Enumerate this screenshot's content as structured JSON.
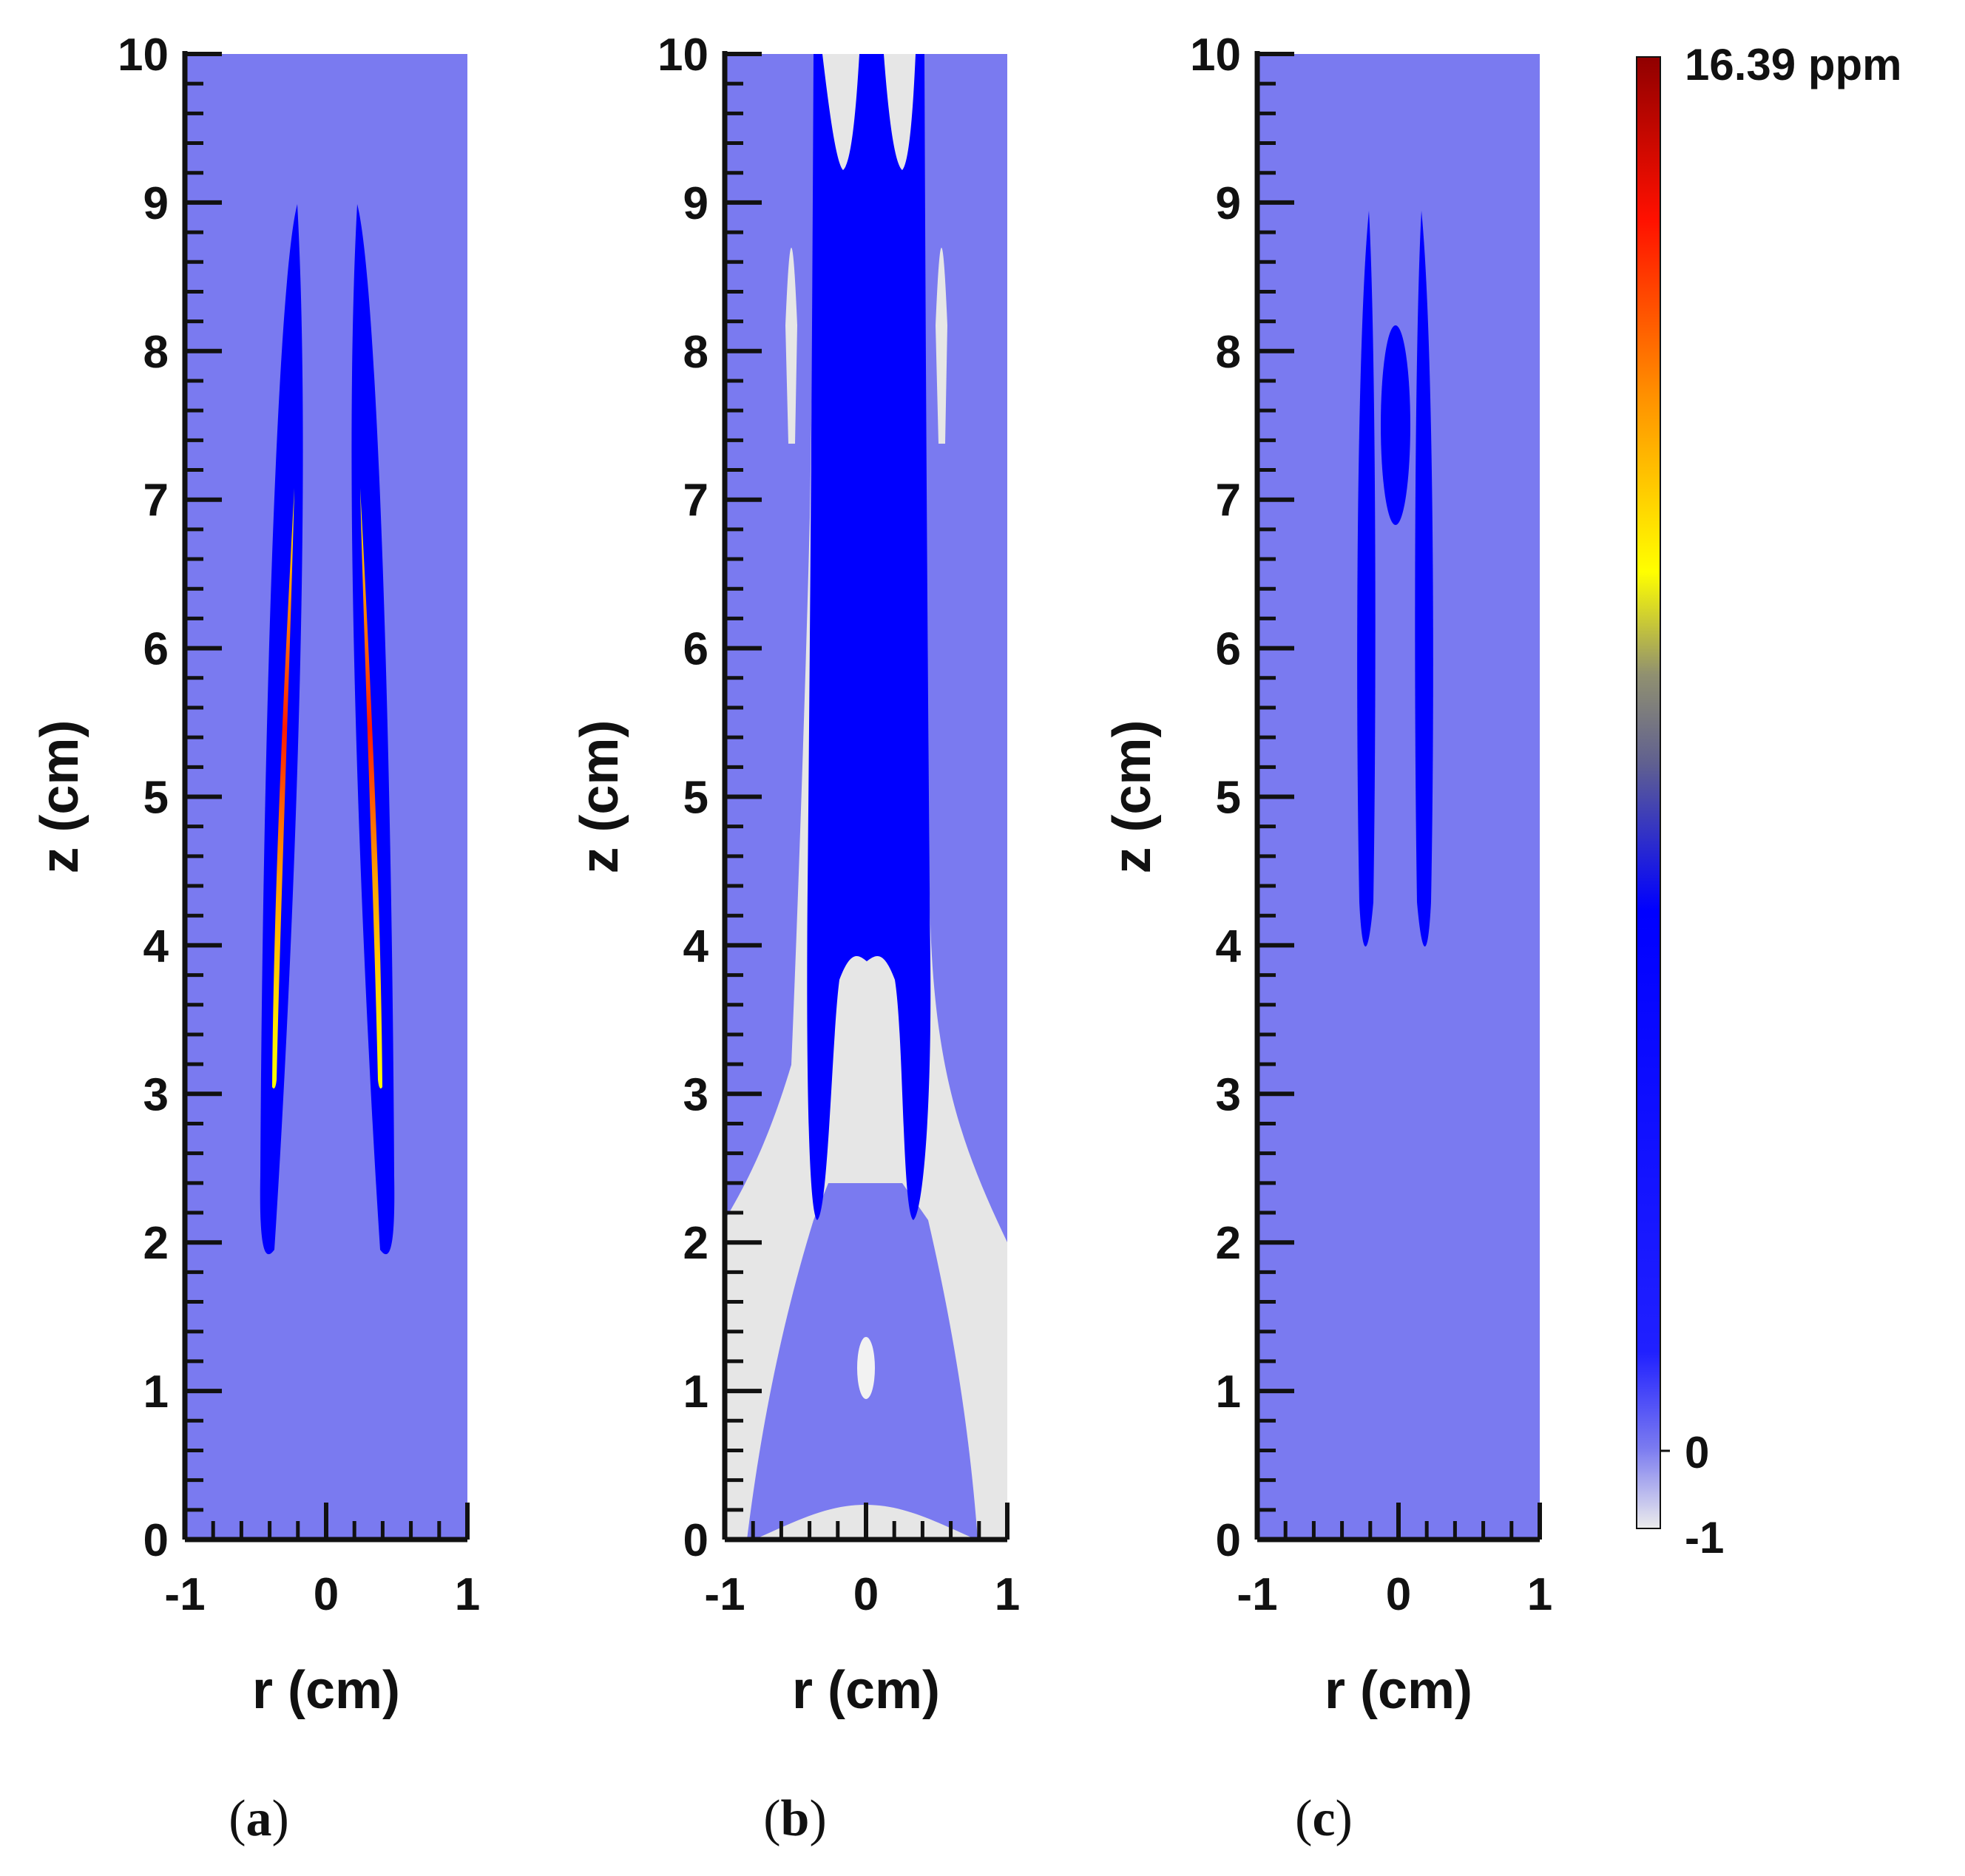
{
  "chart_data": {
    "type": "heatmap",
    "colorbar": {
      "max_label": "16.39 ppm",
      "zero_label": "0",
      "min_label": "-1",
      "range": [
        -1,
        16.39
      ],
      "colors": [
        "#e8e8e8",
        "#7a7af0",
        "#0000ff",
        "#808080",
        "#ffff00",
        "#ff8000",
        "#ff0000",
        "#900000"
      ]
    },
    "panels": [
      {
        "caption": "a",
        "xlabel": "r (cm)",
        "ylabel": "z (cm)",
        "xlim": [
          -1,
          1
        ],
        "ylim": [
          0,
          10
        ],
        "xticks": [
          "-1",
          "0",
          "1"
        ],
        "yticks": [
          "0",
          "1",
          "2",
          "3",
          "4",
          "5",
          "6",
          "7",
          "8",
          "9",
          "10"
        ],
        "background": "#7a7af0"
      },
      {
        "caption": "b",
        "xlabel": "r (cm)",
        "ylabel": "z (cm)",
        "xlim": [
          -1,
          1
        ],
        "ylim": [
          0,
          10
        ],
        "xticks": [
          "-1",
          "0",
          "1"
        ],
        "yticks": [
          "0",
          "1",
          "2",
          "3",
          "4",
          "5",
          "6",
          "7",
          "8",
          "9",
          "10"
        ],
        "background": "#7a7af0"
      },
      {
        "caption": "c",
        "xlabel": "r (cm)",
        "ylabel": "z (cm)",
        "xlim": [
          -1,
          1
        ],
        "ylim": [
          0,
          10
        ],
        "xticks": [
          "-1",
          "0",
          "1"
        ],
        "yticks": [
          "0",
          "1",
          "2",
          "3",
          "4",
          "5",
          "6",
          "7",
          "8",
          "9",
          "10"
        ],
        "background": "#7a7af0"
      }
    ]
  }
}
